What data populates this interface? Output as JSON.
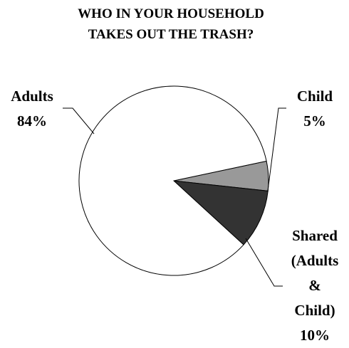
{
  "chart_data": {
    "type": "pie",
    "title_lines": [
      "WHO IN YOUR HOUSEHOLD",
      "TAKES OUT THE TRASH?"
    ],
    "slices": [
      {
        "name": "Adults",
        "value_label": "84%",
        "value": 84,
        "color": "#ffffff"
      },
      {
        "name": "Child",
        "value_label": "5%",
        "value": 5,
        "color": "#999999"
      },
      {
        "name": "Shared (Adults & Child)",
        "value_label": "10%",
        "value": 10,
        "color": "#333333"
      }
    ],
    "label_lines": {
      "adults": [
        "Adults",
        "84%"
      ],
      "child": [
        "Child",
        "5%"
      ],
      "shared": [
        "Shared",
        "(Adults",
        "&",
        "Child)",
        "10%"
      ]
    },
    "legend": "none"
  }
}
